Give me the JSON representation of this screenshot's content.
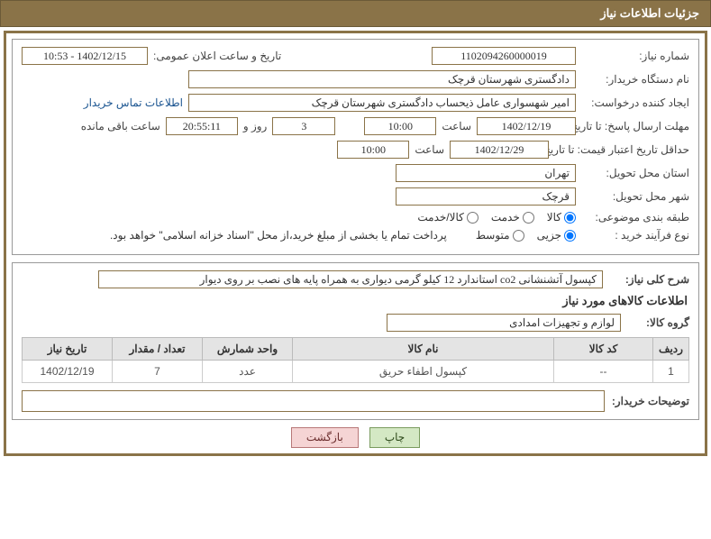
{
  "header": {
    "title": "جزئیات اطلاعات نیاز"
  },
  "form": {
    "need_number_label": "شماره نیاز:",
    "need_number": "1102094260000019",
    "announce_label": "تاریخ و ساعت اعلان عمومی:",
    "announce_value": "1402/12/15 - 10:53",
    "buyer_org_label": "نام دستگاه خریدار:",
    "buyer_org": "دادگستری شهرستان قرچک",
    "requester_label": "ایجاد کننده درخواست:",
    "requester": "امیر شهسواری عامل ذیحساب دادگستری شهرستان قرچک",
    "contact_link": "اطلاعات تماس خریدار",
    "deadline_label": "مهلت ارسال پاسخ: تا تاریخ:",
    "deadline_date": "1402/12/19",
    "time_label": "ساعت",
    "deadline_time": "10:00",
    "days_value": "3",
    "days_label": "روز و",
    "countdown": "20:55:11",
    "remaining_label": "ساعت باقی مانده",
    "validity_label": "حداقل تاریخ اعتبار قیمت: تا تاریخ:",
    "validity_date": "1402/12/29",
    "validity_time": "10:00",
    "province_label": "استان محل تحویل:",
    "province": "تهران",
    "city_label": "شهر محل تحویل:",
    "city": "قرچک",
    "category_label": "طبقه بندی موضوعی:",
    "radio_goods": "کالا",
    "radio_service": "خدمت",
    "radio_goods_service": "کالا/خدمت",
    "process_label": "نوع فرآیند خرید :",
    "radio_partial": "جزیی",
    "radio_medium": "متوسط",
    "payment_note": "پرداخت تمام یا بخشی از مبلغ خرید،از محل \"اسناد خزانه اسلامی\" خواهد بود."
  },
  "description": {
    "label": "شرح کلی نیاز:",
    "text": "کپسول آتشنشانی co2 استاندارد 12 کیلو گرمی دیواری به همراه پایه های نصب بر روی دیوار"
  },
  "goods_info": {
    "title": "اطلاعات کالاهای مورد نیاز",
    "group_label": "گروه کالا:",
    "group_value": "لوازم و تجهیزات امدادی"
  },
  "table": {
    "headers": {
      "row": "ردیف",
      "code": "کد کالا",
      "name": "نام کالا",
      "unit": "واحد شمارش",
      "qty": "تعداد / مقدار",
      "date": "تاریخ نیاز"
    },
    "rows": [
      {
        "row": "1",
        "code": "--",
        "name": "کپسول اطفاء حریق",
        "unit": "عدد",
        "qty": "7",
        "date": "1402/12/19"
      }
    ]
  },
  "notes": {
    "label": "توضیحات خریدار:"
  },
  "buttons": {
    "print": "چاپ",
    "back": "بازگشت"
  },
  "colors": {
    "header_bg": "#8a7348",
    "border": "#8a7348"
  }
}
